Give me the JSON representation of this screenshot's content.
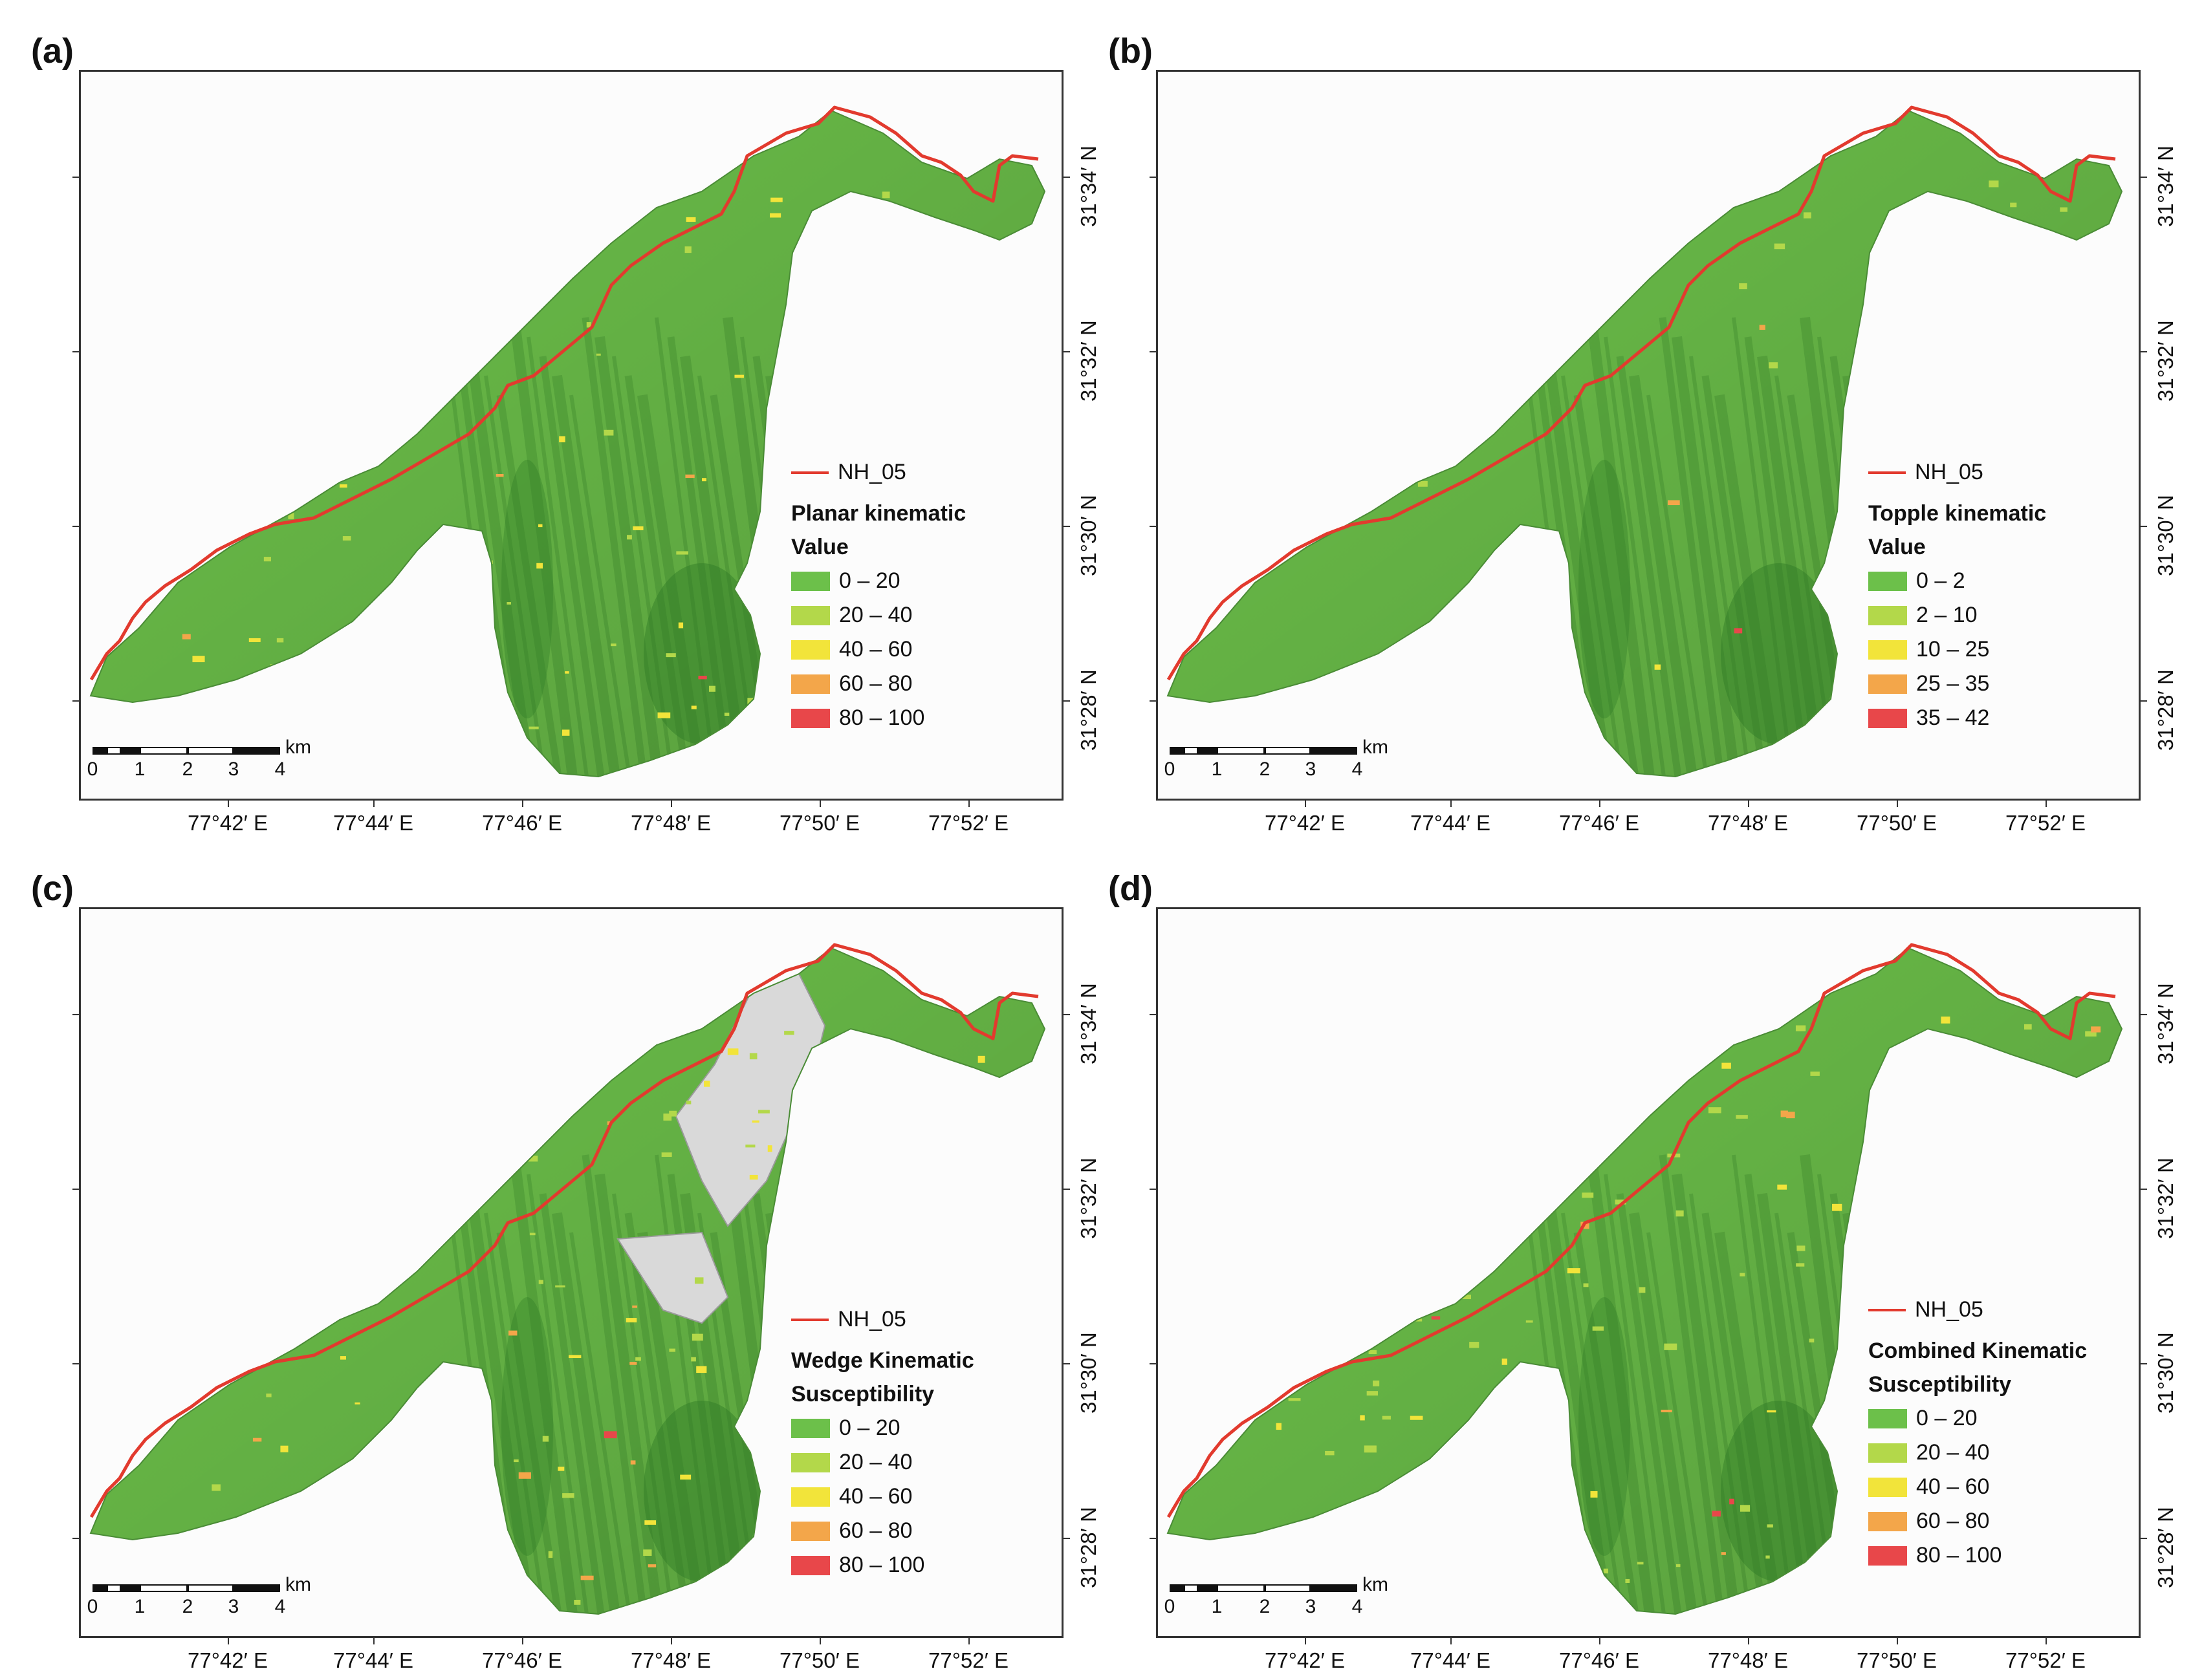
{
  "colors": {
    "class1": "#6cc04a",
    "class2": "#b3d84a",
    "class3": "#f2e43a",
    "class4": "#f3a64a",
    "class5": "#e8474a",
    "road": "#e23a2e",
    "hillshade": "#d9d9d9"
  },
  "lon_labels": [
    "77°42′ E",
    "77°44′ E",
    "77°46′ E",
    "77°48′ E",
    "77°50′ E",
    "77°52′ E"
  ],
  "lat_labels": [
    "31°34′ N",
    "31°32′ N",
    "31°30′ N",
    "31°28′ N"
  ],
  "scale_labels": [
    "0",
    "1",
    "2",
    "3",
    "4"
  ],
  "scale_unit": "km",
  "road_label": "NH_05",
  "panels": [
    {
      "id": "a",
      "label": "(a)",
      "legend_title_1": "Planar kinematic",
      "legend_title_2": "Value",
      "classes": [
        "0 – 20",
        "20 – 40",
        "40 – 60",
        "60 – 80",
        "80 – 100"
      ]
    },
    {
      "id": "b",
      "label": "(b)",
      "legend_title_1": "Topple kinematic",
      "legend_title_2": "Value",
      "classes": [
        "0 – 2",
        "2 – 10",
        "10 – 25",
        "25 – 35",
        "35 – 42"
      ]
    },
    {
      "id": "c",
      "label": "(c)",
      "legend_title_1": "Wedge Kinematic",
      "legend_title_2": "Susceptibility",
      "classes": [
        "0 – 20",
        "20 – 40",
        "40 – 60",
        "60 – 80",
        "80 – 100"
      ]
    },
    {
      "id": "d",
      "label": "(d)",
      "legend_title_1": "Combined Kinematic",
      "legend_title_2": "Susceptibility",
      "classes": [
        "0 – 20",
        "20 – 40",
        "40 – 60",
        "60 – 80",
        "80 – 100"
      ]
    }
  ]
}
